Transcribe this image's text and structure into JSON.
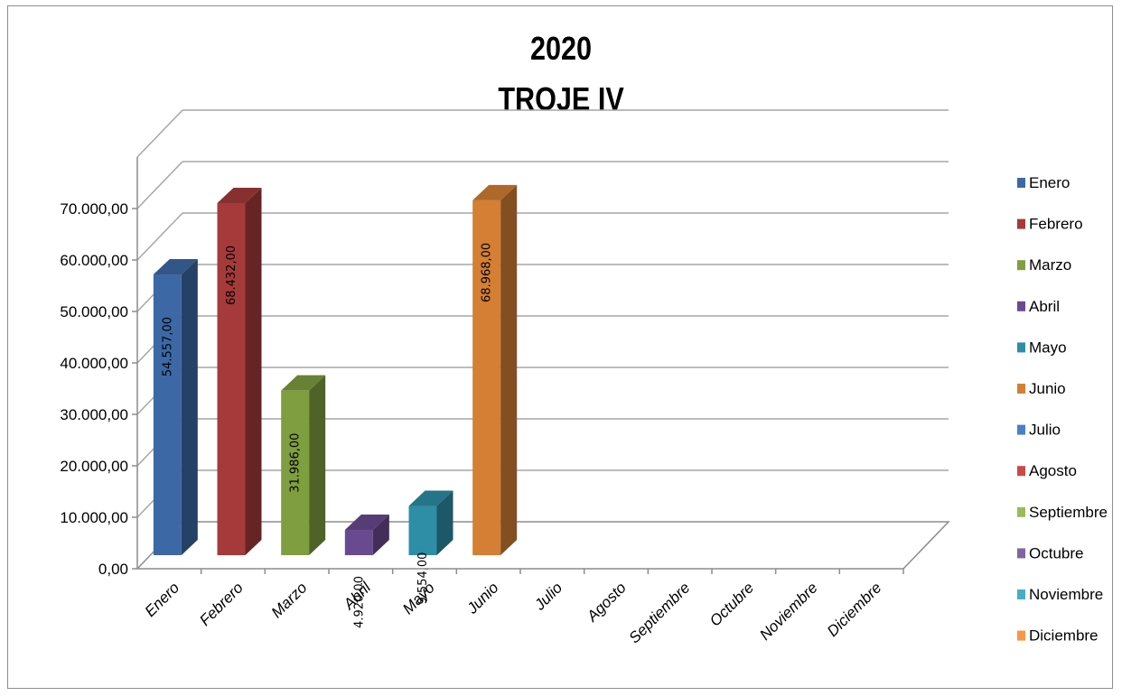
{
  "chart_data": {
    "type": "bar",
    "title_lines": [
      "2020",
      "TROJE IV"
    ],
    "categories": [
      "Enero",
      "Febrero",
      "Marzo",
      "Abril",
      "Mayo",
      "Junio",
      "Julio",
      "Agosto",
      "Septiembre",
      "Octubre",
      "Noviembre",
      "Diciembre"
    ],
    "values": [
      54557,
      68432,
      31986,
      4920,
      9554,
      68968,
      null,
      null,
      null,
      null,
      null,
      null
    ],
    "data_labels": [
      "54.557,00",
      "68.432,00",
      "31.986,00",
      "4.920,00",
      "9.554,00",
      "68.968,00",
      "",
      "",
      "",
      "",
      "",
      ""
    ],
    "y_ticks": [
      "0,00",
      "10.000,00",
      "20.000,00",
      "30.000,00",
      "40.000,00",
      "50.000,00",
      "60.000,00",
      "70.000,00"
    ],
    "ylim": [
      0,
      80000
    ],
    "legend": [
      "Enero",
      "Febrero",
      "Marzo",
      "Abril",
      "Mayo",
      "Junio",
      "Julio",
      "Agosto",
      "Septiembre",
      "Octubre",
      "Noviembre",
      "Diciembre"
    ],
    "legend_position": "right",
    "grid": true,
    "colors": [
      "#3c69a5",
      "#a63a3a",
      "#7f9e3f",
      "#6a4a8f",
      "#2d8ea6",
      "#d47f33",
      "#4a7fc9",
      "#c94a47",
      "#9bbb59",
      "#8064a2",
      "#4bacc6",
      "#f79646"
    ],
    "style": "3d-column"
  }
}
